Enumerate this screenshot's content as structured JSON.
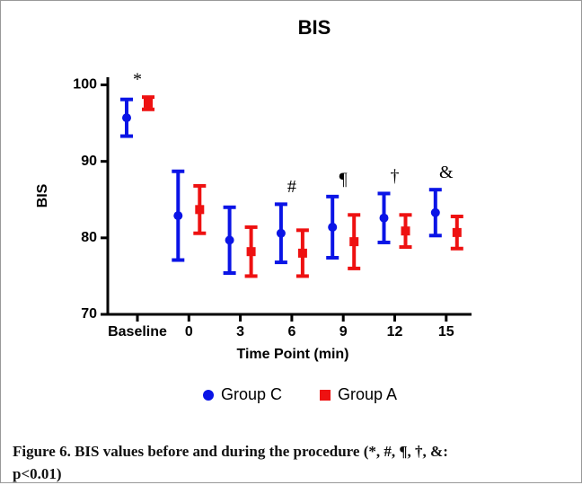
{
  "chart_data": {
    "type": "errorbar",
    "title": "BIS",
    "xlabel": "Time Point (min)",
    "ylabel": "BIS",
    "categories": [
      "Baseline",
      "0",
      "3",
      "6",
      "9",
      "12",
      "15"
    ],
    "annotations": [
      "*",
      null,
      null,
      "#",
      "¶",
      "†",
      "&"
    ],
    "series": [
      {
        "name": "Group C",
        "color": "#0a14e6",
        "marker": "circle",
        "values": [
          95.7,
          82.9,
          79.7,
          80.6,
          81.4,
          82.6,
          83.3
        ],
        "errors": [
          2.4,
          5.8,
          4.3,
          3.8,
          4.0,
          3.2,
          3.0
        ]
      },
      {
        "name": "Group A",
        "color": "#ee1111",
        "marker": "square",
        "values": [
          97.6,
          83.7,
          78.2,
          78.0,
          79.5,
          80.9,
          80.7
        ],
        "errors": [
          0.8,
          3.1,
          3.2,
          3.0,
          3.5,
          2.1,
          2.1
        ]
      }
    ],
    "ylim": [
      70,
      101
    ],
    "yticks": [
      70,
      80,
      90,
      100
    ],
    "legend": "bottom"
  },
  "caption": "Figure 6. BIS values before and during the procedure (*, #, ¶, †, &: p<0.01)"
}
